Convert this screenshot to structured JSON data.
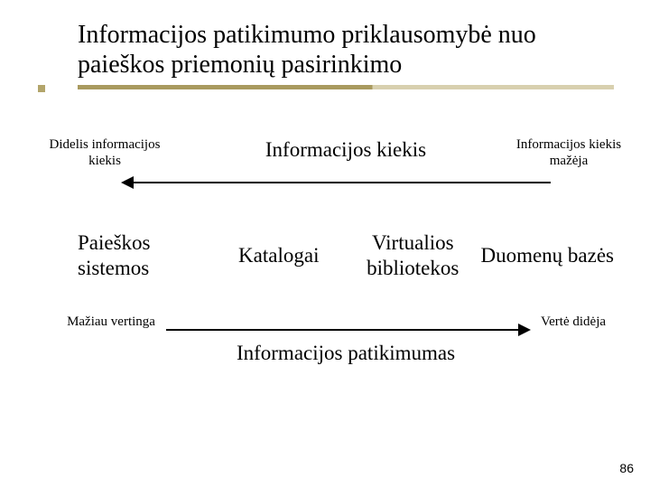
{
  "title": "Informacijos patikimumo priklausomybė nuo paieškos priemonių pasirinkimo",
  "axis_top": {
    "left": "Didelis informacijos\nkiekis",
    "center": "Informacijos kiekis",
    "right": "Informacijos kiekis\nmažėja"
  },
  "categories": [
    "Paieškos sistemos",
    "Katalogai",
    "Virtualios bibliotekos",
    "Duomenų bazės"
  ],
  "axis_bottom": {
    "left": "Mažiau vertinga",
    "center": "Informacijos patikimumas",
    "right": "Vertė didėja"
  },
  "page_number": "86",
  "colors": {
    "underline": [
      "#a99a5f",
      "#d8d0af"
    ],
    "text": "#000000",
    "background": "#ffffff"
  },
  "typography": {
    "title_fontsize": 28,
    "axis_label_fontsize": 23,
    "axis_end_fontsize": 15,
    "category_fontsize": 23,
    "page_number_fontsize": 14
  }
}
